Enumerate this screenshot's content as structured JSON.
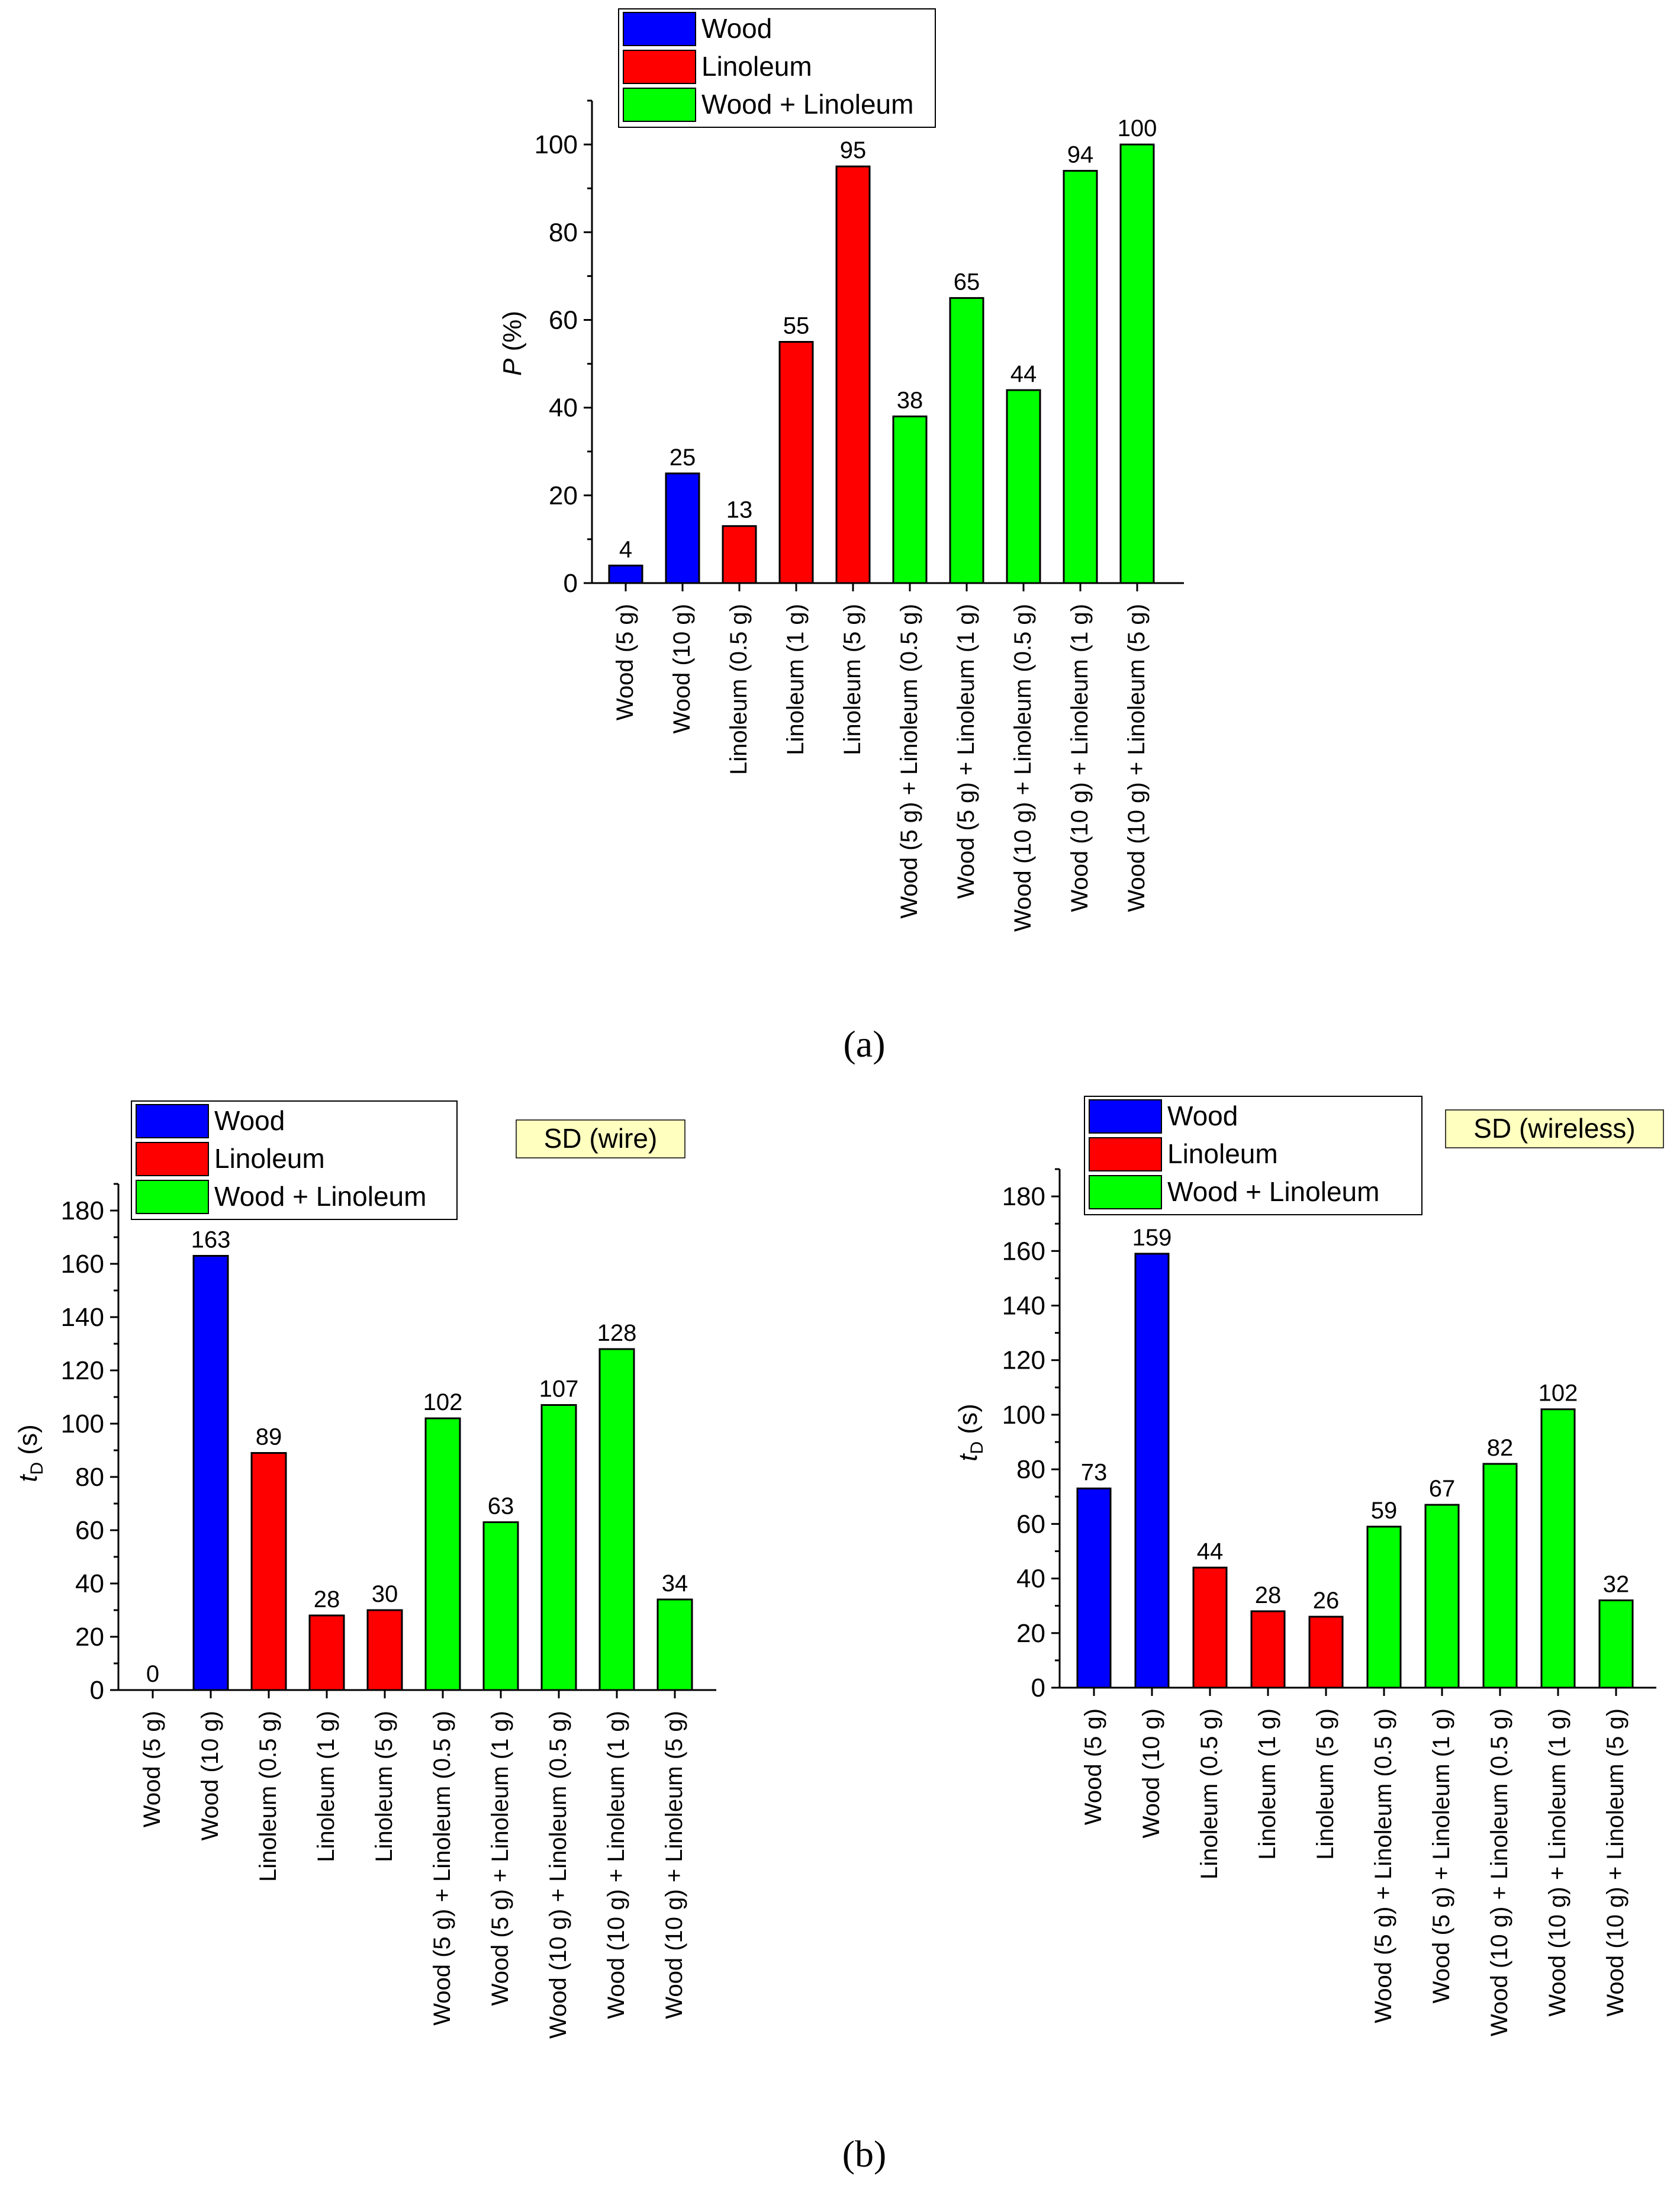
{
  "colors": {
    "Wood": "#0000ff",
    "Linoleum": "#ff0000",
    "Wood + Linoleum": "#00ff00",
    "annotation_bg": "#ffffc0"
  },
  "legend": [
    "Wood",
    "Linoleum",
    "Wood + Linoleum"
  ],
  "panel_labels": {
    "a": "(a)",
    "b": "(b)"
  },
  "chart_data": [
    {
      "id": "a",
      "type": "bar",
      "title": "",
      "annotation": "",
      "xlabel": "",
      "ylabel": "P (%)",
      "ylabel_italic": "P",
      "ylabel_rest": " (%)",
      "ylim": [
        0,
        110
      ],
      "yticks": [
        0,
        20,
        40,
        60,
        80,
        100
      ],
      "categories": [
        "Wood (5 g)",
        "Wood (10 g)",
        "Linoleum (0.5 g)",
        "Linoleum (1 g)",
        "Linoleum (5 g)",
        "Wood (5 g) + Linoleum (0.5 g)",
        "Wood (5 g) + Linoleum (1 g)",
        "Wood (10 g) + Linoleum (0.5 g)",
        "Wood (10 g) + Linoleum (1 g)",
        "Wood (10 g) + Linoleum (5 g)"
      ],
      "groups": [
        "Wood",
        "Wood",
        "Linoleum",
        "Linoleum",
        "Linoleum",
        "Wood + Linoleum",
        "Wood + Linoleum",
        "Wood + Linoleum",
        "Wood + Linoleum",
        "Wood + Linoleum"
      ],
      "values": [
        4,
        25,
        13,
        55,
        95,
        38,
        65,
        44,
        94,
        100
      ],
      "value_labels": [
        "4",
        "25",
        "13",
        "55",
        "95",
        "38",
        "65",
        "44",
        "94",
        "100"
      ],
      "legend_position": "top"
    },
    {
      "id": "b-wire",
      "type": "bar",
      "title": "",
      "annotation": "SD (wire)",
      "xlabel": "",
      "ylabel": "tD (s)",
      "ylabel_italic": "t",
      "ylabel_sub": "D",
      "ylabel_rest": " (s)",
      "ylim": [
        0,
        190
      ],
      "yticks": [
        0,
        20,
        40,
        60,
        80,
        100,
        120,
        140,
        160,
        180
      ],
      "categories": [
        "Wood (5 g)",
        "Wood (10 g)",
        "Linoleum (0.5 g)",
        "Linoleum (1 g)",
        "Linoleum (5 g)",
        "Wood (5 g) + Linoleum (0.5 g)",
        "Wood (5 g) + Linoleum (1 g)",
        "Wood (10 g) + Linoleum (0.5 g)",
        "Wood (10 g) + Linoleum (1 g)",
        "Wood (10 g) + Linoleum (5 g)"
      ],
      "groups": [
        "Wood",
        "Wood",
        "Linoleum",
        "Linoleum",
        "Linoleum",
        "Wood + Linoleum",
        "Wood + Linoleum",
        "Wood + Linoleum",
        "Wood + Linoleum",
        "Wood + Linoleum"
      ],
      "values": [
        0,
        163,
        89,
        28,
        30,
        102,
        63,
        107,
        128,
        34
      ],
      "value_labels": [
        "0",
        "163",
        "89",
        "28",
        "30",
        "102",
        "63",
        "107",
        "128",
        "34"
      ],
      "legend_position": "top-left"
    },
    {
      "id": "b-wireless",
      "type": "bar",
      "title": "",
      "annotation": "SD (wireless)",
      "xlabel": "",
      "ylabel": "tD (s)",
      "ylabel_italic": "t",
      "ylabel_sub": "D",
      "ylabel_rest": " (s)",
      "ylim": [
        0,
        190
      ],
      "yticks": [
        0,
        20,
        40,
        60,
        80,
        100,
        120,
        140,
        160,
        180
      ],
      "categories": [
        "Wood (5 g)",
        "Wood (10 g)",
        "Linoleum (0.5 g)",
        "Linoleum (1 g)",
        "Linoleum (5 g)",
        "Wood (5 g) + Linoleum (0.5 g)",
        "Wood (5 g) + Linoleum (1 g)",
        "Wood (10 g) + Linoleum (0.5 g)",
        "Wood (10 g) + Linoleum (1 g)",
        "Wood (10 g) + Linoleum (5 g)"
      ],
      "groups": [
        "Wood",
        "Wood",
        "Linoleum",
        "Linoleum",
        "Linoleum",
        "Wood + Linoleum",
        "Wood + Linoleum",
        "Wood + Linoleum",
        "Wood + Linoleum",
        "Wood + Linoleum"
      ],
      "values": [
        73,
        159,
        44,
        28,
        26,
        59,
        67,
        82,
        102,
        32
      ],
      "value_labels": [
        "73",
        "159",
        "44",
        "28",
        "26",
        "59",
        "67",
        "82",
        "102",
        "32"
      ],
      "legend_position": "top-left"
    }
  ]
}
